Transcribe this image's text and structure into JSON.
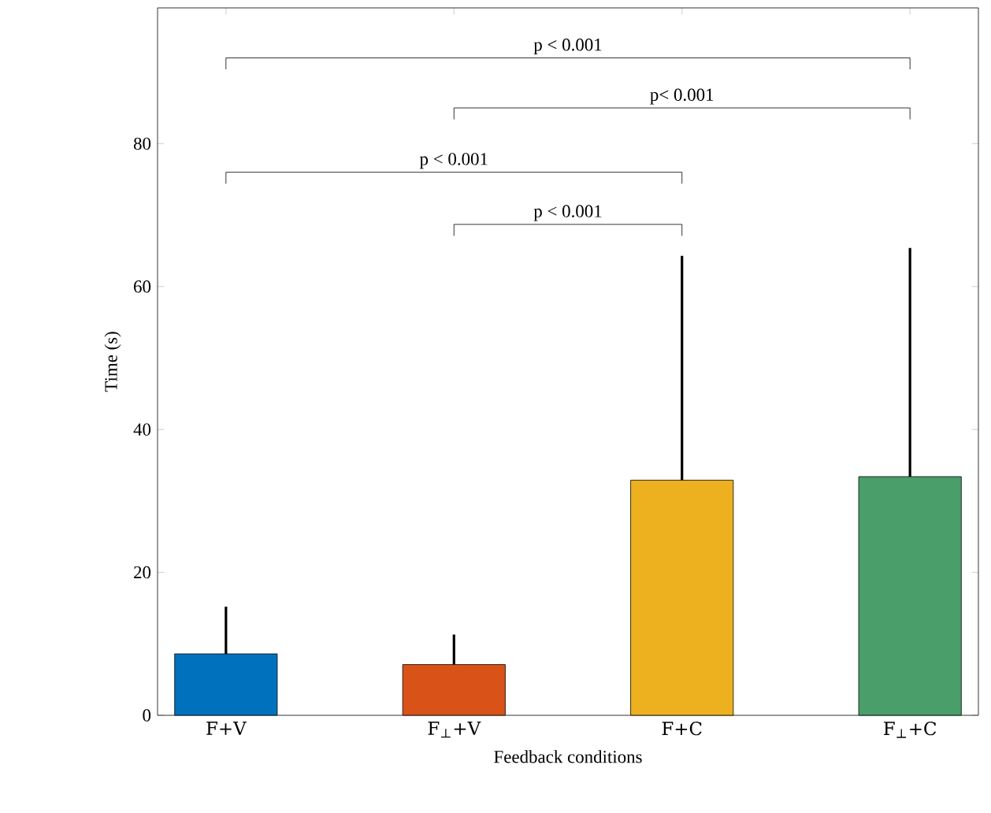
{
  "chart_data": {
    "type": "bar",
    "xlabel": "Feedback conditions",
    "ylabel": "Time (s)",
    "categories": [
      "F+V",
      "F$_{⊥}$+V",
      "F+C",
      "F$_{⊥}$+C"
    ],
    "values": [
      8.6,
      7.1,
      32.9,
      33.4
    ],
    "errors": [
      6.6,
      4.2,
      31.4,
      32.0
    ],
    "colors": [
      "#0072bd",
      "#d95319",
      "#edb120",
      "#4a9e6a"
    ],
    "ylim": [
      0,
      99
    ],
    "yticks": [
      0,
      20,
      40,
      60,
      80
    ],
    "annotations": [
      "p < 0.001",
      "p< 0.001",
      "p < 0.001",
      "p < 0.001"
    ],
    "grid": false
  }
}
